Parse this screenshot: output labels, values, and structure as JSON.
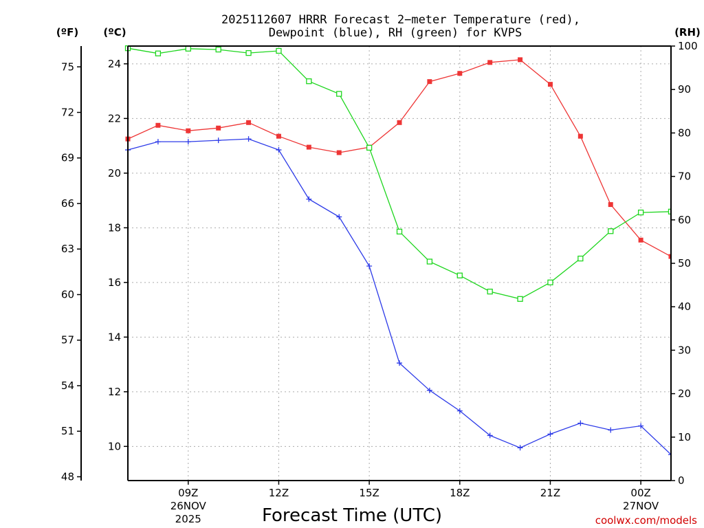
{
  "header": {
    "title_line1": "2025112607 HRRR Forecast 2−meter Temperature (red),",
    "title_line2": "Dewpoint (blue), RH (green) for KVPS"
  },
  "units": {
    "fahrenheit": "(ºF)",
    "celsius": "(ºC)",
    "rh": "(RH)"
  },
  "credit": "coolwx.com/models",
  "chart_data": {
    "type": "line",
    "title": "2025112607 HRRR Forecast 2-meter Temperature (red), Dewpoint (blue), RH (green) for KVPS",
    "xlabel": "Forecast Time (UTC)",
    "x_hours": [
      7,
      8,
      9,
      10,
      11,
      12,
      13,
      14,
      15,
      16,
      17,
      18,
      19,
      20,
      21,
      22,
      23,
      24,
      25
    ],
    "xlim": [
      7,
      25
    ],
    "x_ticks": [
      {
        "hour": 9,
        "label": "09Z",
        "date": "26NOV",
        "year": "2025"
      },
      {
        "hour": 12,
        "label": "12Z"
      },
      {
        "hour": 15,
        "label": "15Z"
      },
      {
        "hour": 18,
        "label": "18Z"
      },
      {
        "hour": 21,
        "label": "21Z"
      },
      {
        "hour": 24,
        "label": "00Z",
        "date": "27NOV"
      }
    ],
    "y_left_celsius": {
      "label": "(ºC)",
      "range": [
        8.75,
        24.65
      ],
      "ticks": [
        10,
        12,
        14,
        16,
        18,
        20,
        22,
        24
      ]
    },
    "y_left_fahrenheit": {
      "label": "(ºF)",
      "ticks": [
        48,
        51,
        54,
        57,
        60,
        63,
        66,
        69,
        72,
        75
      ]
    },
    "y_right_rh": {
      "label": "(RH)",
      "range": [
        0,
        100
      ],
      "ticks": [
        0,
        10,
        20,
        30,
        40,
        50,
        60,
        70,
        80,
        90,
        100
      ]
    },
    "series": [
      {
        "name": "Temperature",
        "axis": "celsius",
        "color": "#ee3535",
        "marker": "filled-square",
        "values": [
          21.25,
          21.75,
          21.55,
          21.65,
          21.85,
          21.35,
          20.95,
          20.75,
          20.95,
          21.85,
          23.35,
          23.65,
          24.05,
          24.15,
          23.25,
          21.35,
          18.85,
          17.55,
          16.95
        ]
      },
      {
        "name": "Dewpoint",
        "axis": "celsius",
        "color": "#2c3ae8",
        "marker": "plus",
        "values": [
          20.85,
          21.15,
          21.15,
          21.2,
          21.25,
          20.85,
          19.05,
          18.4,
          16.6,
          13.05,
          12.05,
          11.3,
          10.4,
          9.95,
          10.45,
          10.85,
          10.6,
          10.75,
          9.7
        ]
      },
      {
        "name": "RH",
        "axis": "rh",
        "color": "#1ed61e",
        "marker": "open-square",
        "values": [
          99.5,
          98.3,
          99.4,
          99.2,
          98.4,
          98.9,
          91.9,
          89.0,
          76.6,
          57.3,
          50.4,
          47.2,
          43.5,
          41.8,
          45.6,
          51.1,
          57.4,
          61.7,
          61.9
        ]
      }
    ]
  }
}
